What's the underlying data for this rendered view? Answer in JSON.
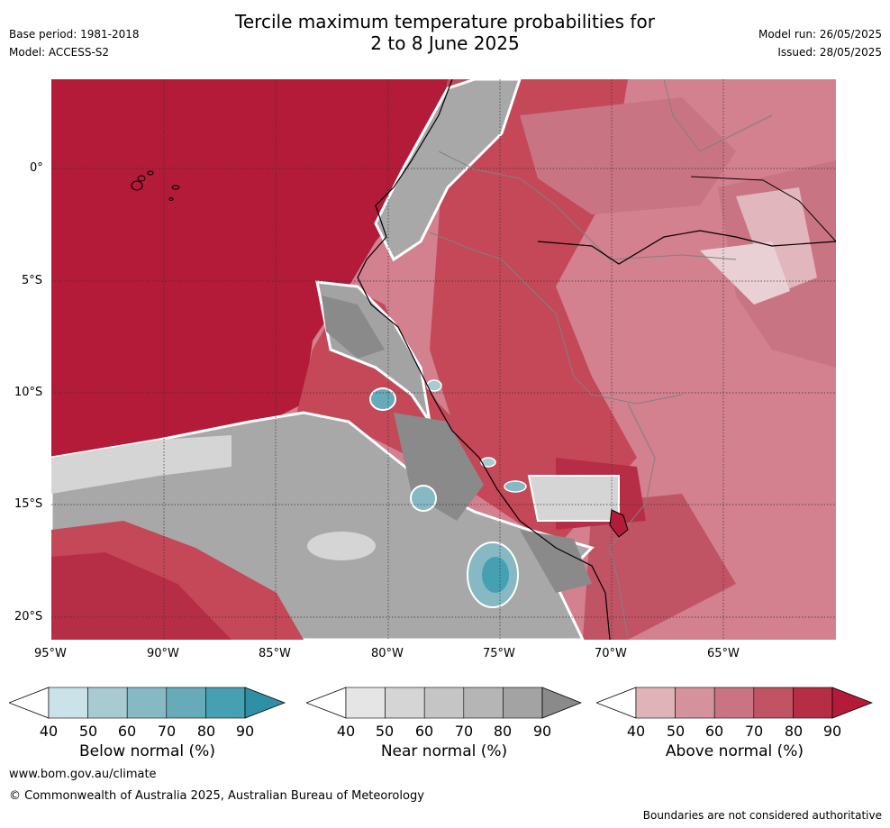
{
  "header": {
    "title_line1": "Tercile maximum temperature probabilities for",
    "title_line2": "2 to 8 June 2025",
    "base_period": "Base period: 1981-2018",
    "model": "Model: ACCESS-S2",
    "model_run": "Model run: 26/05/2025",
    "issued": "Issued: 28/05/2025"
  },
  "map": {
    "lat_labels": [
      "0°",
      "5°S",
      "10°S",
      "15°S",
      "20°S"
    ],
    "lon_labels": [
      "95°W",
      "90°W",
      "85°W",
      "80°W",
      "75°W",
      "70°W",
      "65°W"
    ],
    "colors": {
      "ocean_high": "#b31b38",
      "land_high": "#c44858",
      "above_mid": "#d3808f",
      "above_low": "#e1b6bd",
      "near_normal_grey": "#a8a8a8",
      "near_dark": "#8a8a8a",
      "below_teal": "#4aa6b4",
      "coast": "#000000",
      "border": "#808080"
    }
  },
  "colorbars": [
    {
      "label": "Below normal (%)",
      "ticks": [
        "40",
        "50",
        "60",
        "70",
        "80",
        "90"
      ],
      "colors": [
        "#cbe3e8",
        "#a8cbd2",
        "#86b9c4",
        "#67aab8",
        "#45a0b2",
        "#2f90a5"
      ]
    },
    {
      "label": "Near normal (%)",
      "ticks": [
        "40",
        "50",
        "60",
        "70",
        "80",
        "90"
      ],
      "colors": [
        "#e5e5e5",
        "#d5d5d5",
        "#c5c5c5",
        "#b5b5b5",
        "#a3a3a3",
        "#8a8a8a"
      ]
    },
    {
      "label": "Above normal (%)",
      "ticks": [
        "40",
        "50",
        "60",
        "70",
        "80",
        "90"
      ],
      "colors": [
        "#e0b3b9",
        "#d4939c",
        "#c97482",
        "#c05465",
        "#b62e46",
        "#b31b38"
      ]
    }
  ],
  "footer": {
    "website": "www.bom.gov.au/climate",
    "copyright": "© Commonwealth of Australia 2025, Australian Bureau of Meteorology",
    "disclaimer": "Boundaries are not considered authoritative"
  }
}
